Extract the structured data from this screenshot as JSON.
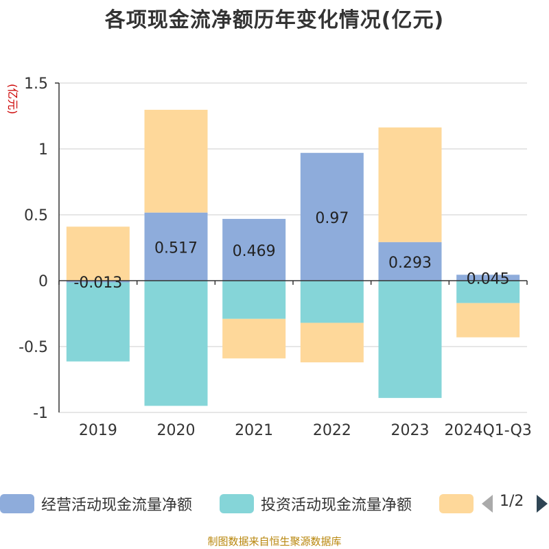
{
  "title": "各项现金流净额历年变化情况(亿元)",
  "unit_label": "(亿元)",
  "source": "制图数据来自恒生聚源数据库",
  "colors": {
    "operating": "#8eacdb",
    "investing": "#85d5d8",
    "third": "#fed89a",
    "axis": "#333333",
    "grid": "#cccccc"
  },
  "legend": {
    "items": [
      {
        "label": "经营活动现金流量净额",
        "color": "#8eacdb"
      },
      {
        "label": "投资活动现金流量净额",
        "color": "#85d5d8"
      },
      {
        "label": "",
        "color": "#fed89a"
      }
    ],
    "page_text": "1/2"
  },
  "chart_data": {
    "type": "bar",
    "stacked": true,
    "categories": [
      "2019",
      "2020",
      "2021",
      "2022",
      "2023",
      "2024Q1-Q3"
    ],
    "ylim": [
      -1,
      1.5
    ],
    "yticks": [
      "-1",
      "-0.5",
      "0",
      "0.5",
      "1",
      "1.5"
    ],
    "grid": true,
    "legend_position": "bottom",
    "series": [
      {
        "name": "经营活动现金流量净额",
        "color": "#8eacdb",
        "values": [
          -0.013,
          0.517,
          0.469,
          0.97,
          0.293,
          0.045
        ],
        "labels": [
          "-0.013",
          "0.517",
          "0.469",
          "0.97",
          "0.293",
          "0.045"
        ]
      },
      {
        "name": "投资活动现金流量净额",
        "color": "#85d5d8",
        "values": [
          -0.6,
          -0.95,
          -0.29,
          -0.32,
          -0.89,
          -0.17
        ]
      },
      {
        "color": "#fed89a",
        "values": [
          0.41,
          0.78,
          -0.3,
          -0.3,
          0.87,
          -0.26
        ]
      }
    ]
  }
}
